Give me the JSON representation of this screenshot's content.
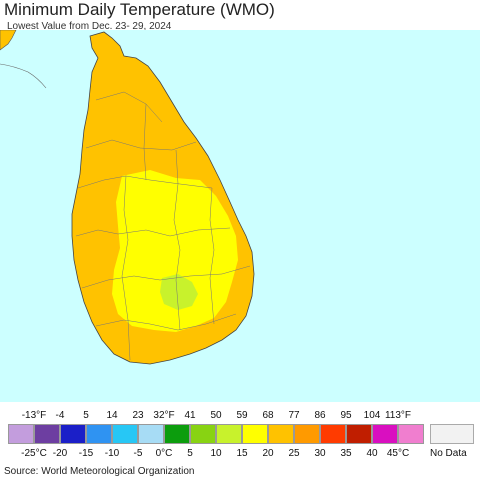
{
  "title": "Minimum Daily Temperature (WMO)",
  "subtitle": "Lowest Value from Dec. 23- 29, 2024",
  "source": "Source: World Meteorological Organization",
  "map": {
    "background_color": "#ccffff",
    "fill_colors": {
      "temp_25_to_30": "#ffc200",
      "temp_20_to_25": "#ffff00",
      "temp_15_to_20": "#c8f22c"
    }
  },
  "legend": {
    "fahrenheit_ticks": [
      "-13°F",
      "-4",
      "5",
      "14",
      "23",
      "32°F",
      "41",
      "50",
      "59",
      "68",
      "77",
      "86",
      "95",
      "104",
      "113°F"
    ],
    "celsius_ticks": [
      "-25°C",
      "-20",
      "-15",
      "-10",
      "-5",
      "0°C",
      "5",
      "10",
      "15",
      "20",
      "25",
      "30",
      "35",
      "40",
      "45°C"
    ],
    "colors": [
      "#c39ddd",
      "#6d3ea1",
      "#1b1fc8",
      "#2f93f2",
      "#27c7f5",
      "#a7dcf5",
      "#0c9d0d",
      "#88d312",
      "#c8f22c",
      "#ffff00",
      "#ffc200",
      "#ff9a00",
      "#ff3b00",
      "#c01e00",
      "#d90fc0",
      "#f07ecf"
    ],
    "no_data_label": "No Data",
    "no_data_color": "#f2f2f2"
  }
}
